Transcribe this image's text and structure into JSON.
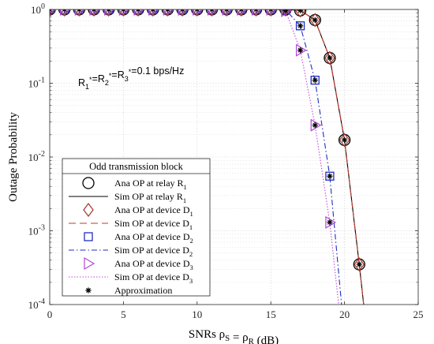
{
  "chart_data": {
    "type": "line",
    "xlabel": "SNRs ρ_S = ρ_R (dB)",
    "ylabel": "Outage Probability",
    "xlim": [
      0,
      25
    ],
    "ylim": [
      0.0001,
      1
    ],
    "yscale": "log",
    "grid": true,
    "xticks": [
      0,
      5,
      10,
      15,
      20,
      25
    ],
    "yticks": [
      {
        "value": 0.0001,
        "base": "10",
        "exp": "-4"
      },
      {
        "value": 0.001,
        "base": "10",
        "exp": "-3"
      },
      {
        "value": 0.01,
        "base": "10",
        "exp": "-2"
      },
      {
        "value": 0.1,
        "base": "10",
        "exp": "-1"
      },
      {
        "value": 1,
        "base": "10",
        "exp": "0"
      }
    ],
    "annotation": "R_1^*=R_2^*=R_3^*=0.1 bps/Hz",
    "legend": {
      "title": "Odd transmission block",
      "placement": "bottom-left"
    },
    "series": [
      {
        "name": "Ana OP at relay R_1",
        "style": "marker",
        "marker": "circle",
        "color": "#000000",
        "x": [
          0,
          1,
          2,
          3,
          4,
          5,
          6,
          7,
          8,
          9,
          10,
          11,
          12,
          13,
          14,
          15,
          16,
          17,
          18,
          19,
          20,
          21
        ],
        "y": [
          1,
          1,
          1,
          1,
          1,
          1,
          1,
          1,
          1,
          1,
          1,
          1,
          1,
          1,
          1,
          1,
          0.999,
          0.97,
          0.72,
          0.22,
          0.017,
          0.00035
        ]
      },
      {
        "name": "Sim OP at relay R_1",
        "style": "line",
        "dash": "solid",
        "color": "#000000",
        "x": [
          0,
          1,
          2,
          3,
          4,
          5,
          6,
          7,
          8,
          9,
          10,
          11,
          12,
          13,
          14,
          15,
          16,
          17,
          18,
          19,
          20,
          21,
          21.3
        ],
        "y": [
          1,
          1,
          1,
          1,
          1,
          1,
          1,
          1,
          1,
          1,
          1,
          1,
          1,
          1,
          1,
          1,
          0.999,
          0.97,
          0.72,
          0.22,
          0.017,
          0.00035,
          0.0001
        ]
      },
      {
        "name": "Ana OP at device D_1",
        "style": "marker",
        "marker": "diamond",
        "color": "#a0362a",
        "x": [
          0,
          1,
          2,
          3,
          4,
          5,
          6,
          7,
          8,
          9,
          10,
          11,
          12,
          13,
          14,
          15,
          16,
          17,
          18,
          19,
          20,
          21
        ],
        "y": [
          1,
          1,
          1,
          1,
          1,
          1,
          1,
          1,
          1,
          1,
          1,
          1,
          1,
          1,
          1,
          1,
          0.999,
          0.97,
          0.72,
          0.22,
          0.017,
          0.00035
        ]
      },
      {
        "name": "Sim OP at device D_1",
        "style": "line",
        "dash": "long-dash",
        "color": "#c0392b",
        "x": [
          0,
          1,
          2,
          3,
          4,
          5,
          6,
          7,
          8,
          9,
          10,
          11,
          12,
          13,
          14,
          15,
          16,
          17,
          18,
          19,
          20,
          21,
          21.3
        ],
        "y": [
          1,
          1,
          1,
          1,
          1,
          1,
          1,
          1,
          1,
          1,
          1,
          1,
          1,
          1,
          1,
          1,
          0.999,
          0.97,
          0.72,
          0.22,
          0.017,
          0.00035,
          0.0001
        ]
      },
      {
        "name": "Ana OP at device D_2",
        "style": "marker",
        "marker": "square",
        "color": "#1f2fbf",
        "x": [
          0,
          1,
          2,
          3,
          4,
          5,
          6,
          7,
          8,
          9,
          10,
          11,
          12,
          13,
          14,
          15,
          16,
          17,
          18,
          19
        ],
        "y": [
          1,
          1,
          1,
          1,
          1,
          1,
          1,
          1,
          1,
          1,
          1,
          1,
          1,
          1,
          1,
          1,
          0.99,
          0.6,
          0.11,
          0.0055
        ]
      },
      {
        "name": "Sim OP at device D_2",
        "style": "line",
        "dash": "dash-dot",
        "color": "#1f2fbf",
        "x": [
          0,
          1,
          2,
          3,
          4,
          5,
          6,
          7,
          8,
          9,
          10,
          11,
          12,
          13,
          14,
          15,
          16,
          17,
          18,
          19,
          19.8
        ],
        "y": [
          1,
          1,
          1,
          1,
          1,
          1,
          1,
          1,
          1,
          1,
          1,
          1,
          1,
          1,
          1,
          1,
          0.99,
          0.6,
          0.11,
          0.0055,
          0.0001
        ]
      },
      {
        "name": "Ana OP at device D_3",
        "style": "marker",
        "marker": "triangle-right",
        "color": "#b547d8",
        "x": [
          0,
          1,
          2,
          3,
          4,
          5,
          6,
          7,
          8,
          9,
          10,
          11,
          12,
          13,
          14,
          15,
          16,
          17,
          18,
          19
        ],
        "y": [
          1,
          1,
          1,
          1,
          1,
          1,
          1,
          1,
          1,
          1,
          1,
          1,
          1,
          1,
          1,
          1,
          0.96,
          0.28,
          0.027,
          0.0013
        ]
      },
      {
        "name": "Sim OP at device D_3",
        "style": "line",
        "dash": "dotted",
        "color": "#c04ad8",
        "x": [
          0,
          1,
          2,
          3,
          4,
          5,
          6,
          7,
          8,
          9,
          10,
          11,
          12,
          13,
          14,
          15,
          16,
          17,
          18,
          19,
          19.6
        ],
        "y": [
          1,
          1,
          1,
          1,
          1,
          1,
          1,
          1,
          1,
          1,
          1,
          1,
          1,
          1,
          1,
          1,
          0.96,
          0.28,
          0.027,
          0.0013,
          0.0001
        ]
      },
      {
        "name": "Approximation",
        "style": "marker",
        "marker": "asterisk",
        "color": "#000000",
        "x": [
          0,
          1,
          2,
          3,
          4,
          5,
          6,
          7,
          8,
          9,
          10,
          11,
          12,
          13,
          14,
          15,
          16,
          17,
          18,
          19,
          20,
          21
        ],
        "y": [
          1,
          1,
          1,
          1,
          1,
          1,
          1,
          1,
          1,
          1,
          1,
          1,
          1,
          1,
          1,
          1,
          0.999,
          0.97,
          0.72,
          0.22,
          0.017,
          0.00035
        ],
        "extra": [
          [
            17,
            0.6
          ],
          [
            18,
            0.11
          ],
          [
            19,
            0.0055
          ],
          [
            16,
            0.96
          ],
          [
            17,
            0.28
          ],
          [
            18,
            0.027
          ],
          [
            19,
            0.0013
          ]
        ]
      }
    ]
  }
}
